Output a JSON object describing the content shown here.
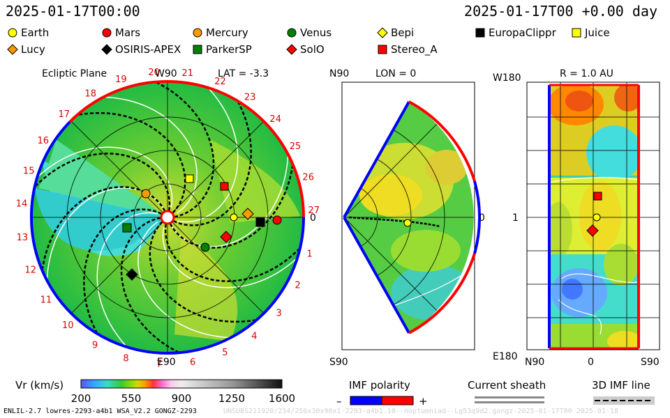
{
  "header": {
    "left_time": "2025-01-17T00:00",
    "right_time": "2025-01-17T00 +0.00 day"
  },
  "legend": [
    {
      "label": "Earth",
      "shape": "circle",
      "color": "#ffff00"
    },
    {
      "label": "Mars",
      "shape": "circle",
      "color": "#ff0000"
    },
    {
      "label": "Mercury",
      "shape": "circle",
      "color": "#ff9900"
    },
    {
      "label": "Venus",
      "shape": "circle",
      "color": "#008000"
    },
    {
      "label": "Bepi",
      "shape": "diamond",
      "color": "#ffff00"
    },
    {
      "label": "EuropaClippr",
      "shape": "square",
      "color": "#000000"
    },
    {
      "label": "Juice",
      "shape": "square",
      "color": "#ffff00"
    },
    {
      "label": "Lucy",
      "shape": "diamond",
      "color": "#ff9900"
    },
    {
      "label": "OSIRIS-APEX",
      "shape": "diamond",
      "color": "#000000"
    },
    {
      "label": "ParkerSP",
      "shape": "square",
      "color": "#008000"
    },
    {
      "label": "SolO",
      "shape": "diamond",
      "color": "#ff0000"
    },
    {
      "label": "Stereo_A",
      "shape": "square",
      "color": "#ff0000"
    }
  ],
  "ecliptic": {
    "title": "Ecliptic Plane",
    "lat_label": "LAT = -3.3",
    "top_label": "W90",
    "bottom_label": "E90",
    "right_label": "0",
    "carrington_ticks": [
      "1",
      "2",
      "3",
      "4",
      "5",
      "6",
      "7",
      "8",
      "9",
      "10",
      "11",
      "12",
      "13",
      "14",
      "15",
      "16",
      "17",
      "18",
      "19",
      "20",
      "21",
      "22",
      "23",
      "24",
      "25",
      "26",
      "27"
    ]
  },
  "meridional": {
    "top_label": "N90",
    "bottom_label": "S90",
    "lon_label": "LON = 0",
    "right_label": "0"
  },
  "sphere": {
    "title": "R = 1.0 AU",
    "top_left": "W180",
    "bottom_left": "E180",
    "mid_left": "1",
    "bottom_n": "N90",
    "bottom_zero": "0",
    "bottom_s": "S90"
  },
  "colorbar": {
    "label": "Vr (km/s)",
    "ticks": [
      "200",
      "550",
      "900",
      "1250",
      "1600"
    ]
  },
  "imf": {
    "title": "IMF polarity",
    "minus": "–",
    "plus": "+"
  },
  "sheath": {
    "title": "Current sheath"
  },
  "imfline": {
    "title": "3D IMF line"
  },
  "footer": {
    "left": "ENLIL-2.7 lowres-2293-a4b1 WSA_V2.2 GONGZ-2293",
    "watermark": "UNSUBS211920/234/256x30x90x1-2293-a4b1.10--noptumniad--Lg53q9d2.gongz-2025-01-17T00    2025-01-18"
  },
  "colors": {
    "slow": "#33bb33",
    "fast": "#44dddd",
    "pos": "#ff0000",
    "neg": "#0000ff"
  }
}
